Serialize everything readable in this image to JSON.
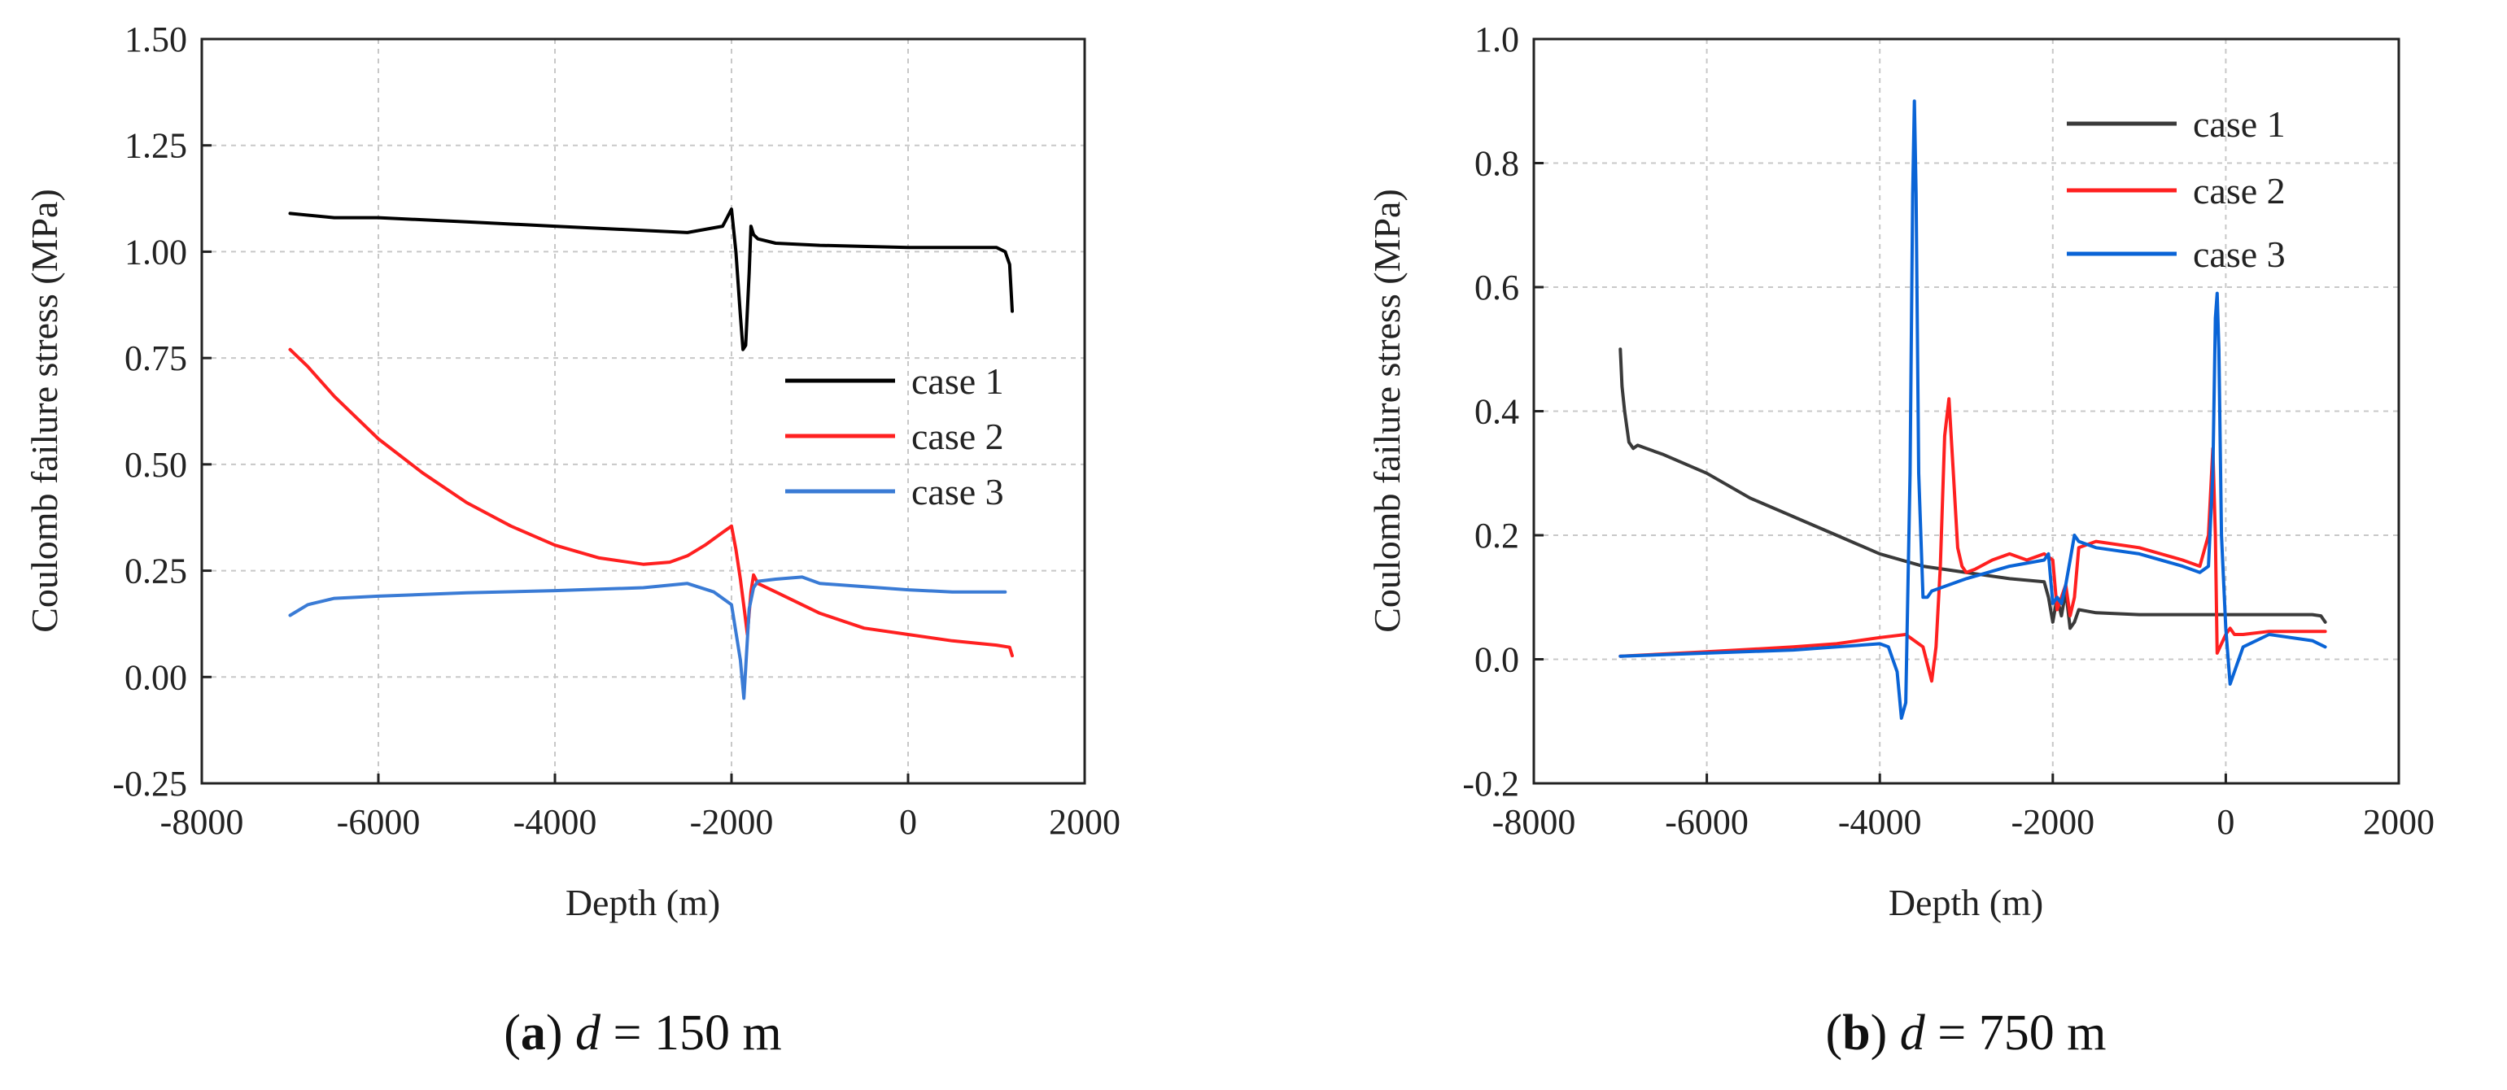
{
  "colors": {
    "case1_a": "#000000",
    "case2": "#ff2020",
    "case3_a": "#3a7bd5",
    "case1_b": "#3a3a3a",
    "case3_b": "#0a64d6"
  },
  "panels": [
    {
      "caption": {
        "letter": "a",
        "var": "d",
        "value": " = 150 m"
      },
      "xlabel": "Depth (m)",
      "ylabel": "Coulomb failure stress (MPa)",
      "xticks": [
        "-8000",
        "-6000",
        "-4000",
        "-2000",
        "0",
        "2000"
      ],
      "yticks": [
        "-0.25",
        "0.00",
        "0.25",
        "0.50",
        "0.75",
        "1.00",
        "1.25",
        "1.50"
      ],
      "legend": [
        "case 1",
        "case 2",
        "case 3"
      ]
    },
    {
      "caption": {
        "letter": "b",
        "var": "d",
        "value": " = 750 m"
      },
      "xlabel": "Depth (m)",
      "ylabel": "Coulomb failure stress (MPa)",
      "xticks": [
        "-8000",
        "-6000",
        "-4000",
        "-2000",
        "0",
        "2000"
      ],
      "yticks": [
        "-0.2",
        "0.0",
        "0.2",
        "0.4",
        "0.6",
        "0.8",
        "1.0"
      ],
      "legend": [
        "case 1",
        "case 2",
        "case 3"
      ]
    }
  ],
  "chart_data": [
    {
      "type": "line",
      "xlabel": "Depth (m)",
      "ylabel": "Coulomb failure stress (MPa)",
      "xlim": [
        -8000,
        2000
      ],
      "ylim": [
        -0.25,
        1.5
      ],
      "grid": true,
      "legend_position": "right",
      "series": [
        {
          "name": "case 1",
          "x": [
            -7000,
            -6500,
            -6000,
            -5000,
            -4000,
            -3000,
            -2500,
            -2100,
            -2050,
            -2000,
            -1950,
            -1900,
            -1870,
            -1840,
            -1800,
            -1780,
            -1750,
            -1700,
            -1500,
            -1000,
            0,
            500,
            1000,
            1100,
            1150,
            1180
          ],
          "y": [
            1.09,
            1.08,
            1.08,
            1.07,
            1.06,
            1.05,
            1.045,
            1.06,
            1.08,
            1.1,
            1.0,
            0.85,
            0.77,
            0.78,
            0.95,
            1.06,
            1.04,
            1.03,
            1.02,
            1.015,
            1.01,
            1.01,
            1.01,
            1.0,
            0.97,
            0.86
          ]
        },
        {
          "name": "case 2",
          "x": [
            -7000,
            -6800,
            -6500,
            -6000,
            -5500,
            -5000,
            -4500,
            -4000,
            -3500,
            -3000,
            -2700,
            -2500,
            -2300,
            -2100,
            -2000,
            -1950,
            -1900,
            -1850,
            -1820,
            -1780,
            -1750,
            -1700,
            -1500,
            -1000,
            -500,
            0,
            500,
            1000,
            1150,
            1180
          ],
          "y": [
            0.77,
            0.73,
            0.66,
            0.56,
            0.48,
            0.41,
            0.355,
            0.31,
            0.28,
            0.265,
            0.27,
            0.285,
            0.31,
            0.34,
            0.355,
            0.3,
            0.23,
            0.15,
            0.1,
            0.2,
            0.24,
            0.22,
            0.2,
            0.15,
            0.115,
            0.1,
            0.085,
            0.075,
            0.07,
            0.05
          ]
        },
        {
          "name": "case 3",
          "x": [
            -7000,
            -6800,
            -6500,
            -6000,
            -5000,
            -4000,
            -3000,
            -2500,
            -2200,
            -2000,
            -1900,
            -1860,
            -1840,
            -1800,
            -1750,
            -1700,
            -1500,
            -1200,
            -1000,
            0,
            500,
            1000,
            1100
          ],
          "y": [
            0.145,
            0.17,
            0.185,
            0.19,
            0.198,
            0.203,
            0.21,
            0.22,
            0.2,
            0.17,
            0.04,
            -0.05,
            0.02,
            0.16,
            0.21,
            0.225,
            0.23,
            0.235,
            0.22,
            0.205,
            0.2,
            0.2,
            0.2
          ]
        }
      ]
    },
    {
      "type": "line",
      "xlabel": "Depth (m)",
      "ylabel": "Coulomb failure stress (MPa)",
      "xlim": [
        -8000,
        2000
      ],
      "ylim": [
        -0.2,
        1.0
      ],
      "grid": true,
      "legend_position": "top-right",
      "series": [
        {
          "name": "case 1",
          "x": [
            -7000,
            -6980,
            -6950,
            -6900,
            -6850,
            -6800,
            -6700,
            -6500,
            -6000,
            -5500,
            -5000,
            -4500,
            -4000,
            -3500,
            -3000,
            -2500,
            -2100,
            -2050,
            -2000,
            -1950,
            -1900,
            -1850,
            -1800,
            -1750,
            -1700,
            -1500,
            -1000,
            -500,
            0,
            500,
            1000,
            1100,
            1150
          ],
          "y": [
            0.5,
            0.44,
            0.4,
            0.35,
            0.34,
            0.345,
            0.34,
            0.33,
            0.3,
            0.26,
            0.23,
            0.2,
            0.17,
            0.15,
            0.14,
            0.13,
            0.125,
            0.1,
            0.06,
            0.1,
            0.07,
            0.11,
            0.05,
            0.06,
            0.08,
            0.075,
            0.072,
            0.072,
            0.072,
            0.072,
            0.072,
            0.07,
            0.06
          ]
        },
        {
          "name": "case 2",
          "x": [
            -7000,
            -6000,
            -5000,
            -4500,
            -4000,
            -3700,
            -3500,
            -3400,
            -3350,
            -3300,
            -3250,
            -3200,
            -3150,
            -3100,
            -3050,
            -3000,
            -2900,
            -2700,
            -2500,
            -2300,
            -2100,
            -2000,
            -1950,
            -1900,
            -1850,
            -1800,
            -1750,
            -1700,
            -1500,
            -1000,
            -500,
            -300,
            -200,
            -150,
            -120,
            -100,
            0,
            50,
            100,
            200,
            500,
            1000,
            1150
          ],
          "y": [
            0.005,
            0.012,
            0.02,
            0.025,
            0.035,
            0.04,
            0.02,
            -0.035,
            0.02,
            0.15,
            0.36,
            0.42,
            0.3,
            0.18,
            0.15,
            0.14,
            0.145,
            0.16,
            0.17,
            0.16,
            0.17,
            0.16,
            0.08,
            0.1,
            0.12,
            0.07,
            0.1,
            0.18,
            0.19,
            0.18,
            0.16,
            0.15,
            0.2,
            0.34,
            0.2,
            0.01,
            0.04,
            0.05,
            0.04,
            0.04,
            0.045,
            0.045,
            0.045
          ]
        },
        {
          "name": "case 3",
          "x": [
            -7000,
            -6000,
            -5000,
            -4500,
            -4000,
            -3900,
            -3800,
            -3750,
            -3700,
            -3650,
            -3620,
            -3600,
            -3580,
            -3550,
            -3500,
            -3450,
            -3400,
            -3200,
            -3000,
            -2500,
            -2100,
            -2050,
            -2000,
            -1950,
            -1900,
            -1850,
            -1800,
            -1750,
            -1700,
            -1500,
            -1000,
            -500,
            -300,
            -200,
            -150,
            -120,
            -100,
            -80,
            -50,
            0,
            50,
            100,
            200,
            500,
            1000,
            1150
          ],
          "y": [
            0.005,
            0.01,
            0.015,
            0.02,
            0.025,
            0.02,
            -0.02,
            -0.095,
            -0.07,
            0.3,
            0.75,
            0.9,
            0.75,
            0.3,
            0.1,
            0.1,
            0.11,
            0.12,
            0.13,
            0.15,
            0.16,
            0.17,
            0.09,
            0.1,
            0.09,
            0.12,
            0.16,
            0.2,
            0.19,
            0.18,
            0.17,
            0.15,
            0.14,
            0.15,
            0.3,
            0.55,
            0.59,
            0.5,
            0.2,
            0.05,
            -0.04,
            -0.02,
            0.02,
            0.04,
            0.03,
            0.02
          ]
        }
      ]
    }
  ]
}
